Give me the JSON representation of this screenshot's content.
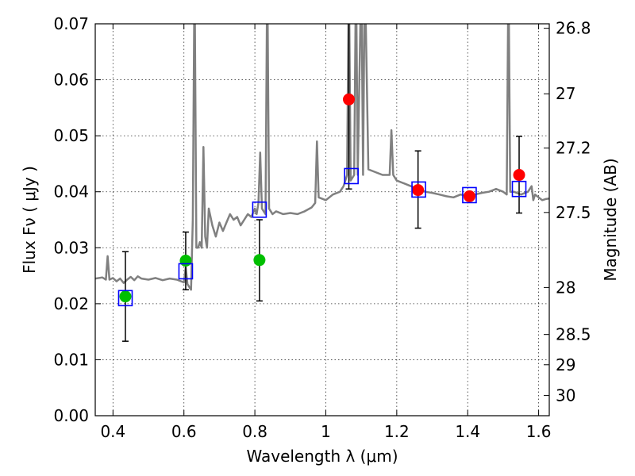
{
  "chart_data": {
    "type": "scatter",
    "xlabel": "Wavelength  λ (μm)",
    "ylabel": "Flux  Fν  ( μJy )",
    "y2label": "Magnitude (AB)",
    "xlim": [
      0.35,
      1.63
    ],
    "ylim": [
      0,
      0.07
    ],
    "x_ticks": [
      0.4,
      0.6,
      0.8,
      1.0,
      1.2,
      1.4,
      1.6
    ],
    "x_tick_labels": [
      "0.4",
      "0.6",
      "0.8",
      "1",
      "1.2",
      "1.4",
      "1.6"
    ],
    "y_ticks": [
      0.0,
      0.01,
      0.02,
      0.03,
      0.04,
      0.05,
      0.06,
      0.07
    ],
    "y_tick_labels": [
      "0.00",
      "0.01",
      "0.02",
      "0.03",
      "0.04",
      "0.05",
      "0.06",
      "0.07"
    ],
    "y2_ticks": [
      {
        "label": "26.8",
        "flux": 0.0692
      },
      {
        "label": "27",
        "flux": 0.0575
      },
      {
        "label": "27.2",
        "flux": 0.0478
      },
      {
        "label": "27.5",
        "flux": 0.0363
      },
      {
        "label": "28",
        "flux": 0.0229
      },
      {
        "label": "28.5",
        "flux": 0.0145
      },
      {
        "label": "29",
        "flux": 0.0091
      },
      {
        "label": "30",
        "flux": 0.0036
      }
    ],
    "grid": true,
    "colors": {
      "spectrum": "#808080",
      "green": "#00bf00",
      "red": "#ff0000",
      "model": "#0000ff",
      "errorbar": "#000000"
    },
    "spectrum": [
      [
        0.35,
        0.0245
      ],
      [
        0.37,
        0.0247
      ],
      [
        0.38,
        0.0243
      ],
      [
        0.385,
        0.0285
      ],
      [
        0.39,
        0.0243
      ],
      [
        0.4,
        0.0246
      ],
      [
        0.41,
        0.024
      ],
      [
        0.42,
        0.0245
      ],
      [
        0.43,
        0.0237
      ],
      [
        0.44,
        0.0243
      ],
      [
        0.45,
        0.0248
      ],
      [
        0.46,
        0.0242
      ],
      [
        0.47,
        0.0249
      ],
      [
        0.48,
        0.0245
      ],
      [
        0.5,
        0.0243
      ],
      [
        0.52,
        0.0246
      ],
      [
        0.54,
        0.0242
      ],
      [
        0.56,
        0.0245
      ],
      [
        0.58,
        0.0243
      ],
      [
        0.6,
        0.0238
      ],
      [
        0.605,
        0.0265
      ],
      [
        0.61,
        0.0235
      ],
      [
        0.62,
        0.0225
      ],
      [
        0.625,
        0.035
      ],
      [
        0.63,
        0.08
      ],
      [
        0.635,
        0.03
      ],
      [
        0.64,
        0.03
      ],
      [
        0.645,
        0.031
      ],
      [
        0.65,
        0.03
      ],
      [
        0.655,
        0.048
      ],
      [
        0.66,
        0.032
      ],
      [
        0.665,
        0.03
      ],
      [
        0.67,
        0.037
      ],
      [
        0.68,
        0.034
      ],
      [
        0.69,
        0.032
      ],
      [
        0.7,
        0.0345
      ],
      [
        0.71,
        0.033
      ],
      [
        0.72,
        0.0345
      ],
      [
        0.73,
        0.036
      ],
      [
        0.74,
        0.035
      ],
      [
        0.75,
        0.0355
      ],
      [
        0.76,
        0.034
      ],
      [
        0.77,
        0.035
      ],
      [
        0.78,
        0.036
      ],
      [
        0.79,
        0.0355
      ],
      [
        0.8,
        0.037
      ],
      [
        0.805,
        0.036
      ],
      [
        0.81,
        0.038
      ],
      [
        0.815,
        0.047
      ],
      [
        0.82,
        0.037
      ],
      [
        0.825,
        0.0365
      ],
      [
        0.83,
        0.036
      ],
      [
        0.835,
        0.08
      ],
      [
        0.84,
        0.037
      ],
      [
        0.85,
        0.036
      ],
      [
        0.86,
        0.0365
      ],
      [
        0.88,
        0.036
      ],
      [
        0.9,
        0.0362
      ],
      [
        0.92,
        0.036
      ],
      [
        0.94,
        0.0365
      ],
      [
        0.96,
        0.0372
      ],
      [
        0.97,
        0.038
      ],
      [
        0.975,
        0.049
      ],
      [
        0.98,
        0.039
      ],
      [
        1.0,
        0.0385
      ],
      [
        1.02,
        0.0395
      ],
      [
        1.04,
        0.04
      ],
      [
        1.05,
        0.041
      ],
      [
        1.06,
        0.043
      ],
      [
        1.065,
        0.08
      ],
      [
        1.07,
        0.042
      ],
      [
        1.08,
        0.043
      ],
      [
        1.085,
        0.08
      ],
      [
        1.09,
        0.043
      ],
      [
        1.1,
        0.08
      ],
      [
        1.105,
        0.043
      ],
      [
        1.11,
        0.08
      ],
      [
        1.12,
        0.044
      ],
      [
        1.14,
        0.0435
      ],
      [
        1.16,
        0.043
      ],
      [
        1.18,
        0.043
      ],
      [
        1.185,
        0.051
      ],
      [
        1.19,
        0.043
      ],
      [
        1.2,
        0.042
      ],
      [
        1.22,
        0.0415
      ],
      [
        1.24,
        0.041
      ],
      [
        1.26,
        0.0405
      ],
      [
        1.28,
        0.04
      ],
      [
        1.3,
        0.0398
      ],
      [
        1.32,
        0.0395
      ],
      [
        1.34,
        0.0392
      ],
      [
        1.36,
        0.039
      ],
      [
        1.38,
        0.0395
      ],
      [
        1.4,
        0.0392
      ],
      [
        1.42,
        0.0395
      ],
      [
        1.44,
        0.0398
      ],
      [
        1.46,
        0.04
      ],
      [
        1.48,
        0.0405
      ],
      [
        1.5,
        0.04
      ],
      [
        1.51,
        0.0395
      ],
      [
        1.515,
        0.08
      ],
      [
        1.52,
        0.04
      ],
      [
        1.53,
        0.04
      ],
      [
        1.55,
        0.0395
      ],
      [
        1.57,
        0.04
      ],
      [
        1.58,
        0.041
      ],
      [
        1.585,
        0.0385
      ],
      [
        1.59,
        0.0395
      ],
      [
        1.6,
        0.039
      ],
      [
        1.61,
        0.0385
      ],
      [
        1.62,
        0.0387
      ],
      [
        1.63,
        0.0388
      ]
    ],
    "green_points": [
      {
        "x": 0.435,
        "y": 0.0213,
        "err_low": 0.0133,
        "err_high": 0.0293
      },
      {
        "x": 0.605,
        "y": 0.0277,
        "err_low": 0.0225,
        "err_high": 0.0328
      },
      {
        "x": 0.813,
        "y": 0.0278,
        "err_low": 0.0205,
        "err_high": 0.035
      }
    ],
    "red_points": [
      {
        "x": 1.065,
        "y": 0.0565,
        "err_low": 0.0405,
        "err_high": 0.073
      },
      {
        "x": 1.26,
        "y": 0.0403,
        "err_low": 0.0335,
        "err_high": 0.0473
      },
      {
        "x": 1.405,
        "y": 0.0392,
        "err_low": 0.0392,
        "err_high": 0.0392
      },
      {
        "x": 1.545,
        "y": 0.043,
        "err_low": 0.0362,
        "err_high": 0.0499
      }
    ],
    "model_boxes": [
      {
        "x": 0.435,
        "y": 0.021
      },
      {
        "x": 0.605,
        "y": 0.0258
      },
      {
        "x": 0.813,
        "y": 0.0368
      },
      {
        "x": 1.072,
        "y": 0.0428
      },
      {
        "x": 1.262,
        "y": 0.0404
      },
      {
        "x": 1.405,
        "y": 0.0394
      },
      {
        "x": 1.545,
        "y": 0.0405
      }
    ]
  }
}
